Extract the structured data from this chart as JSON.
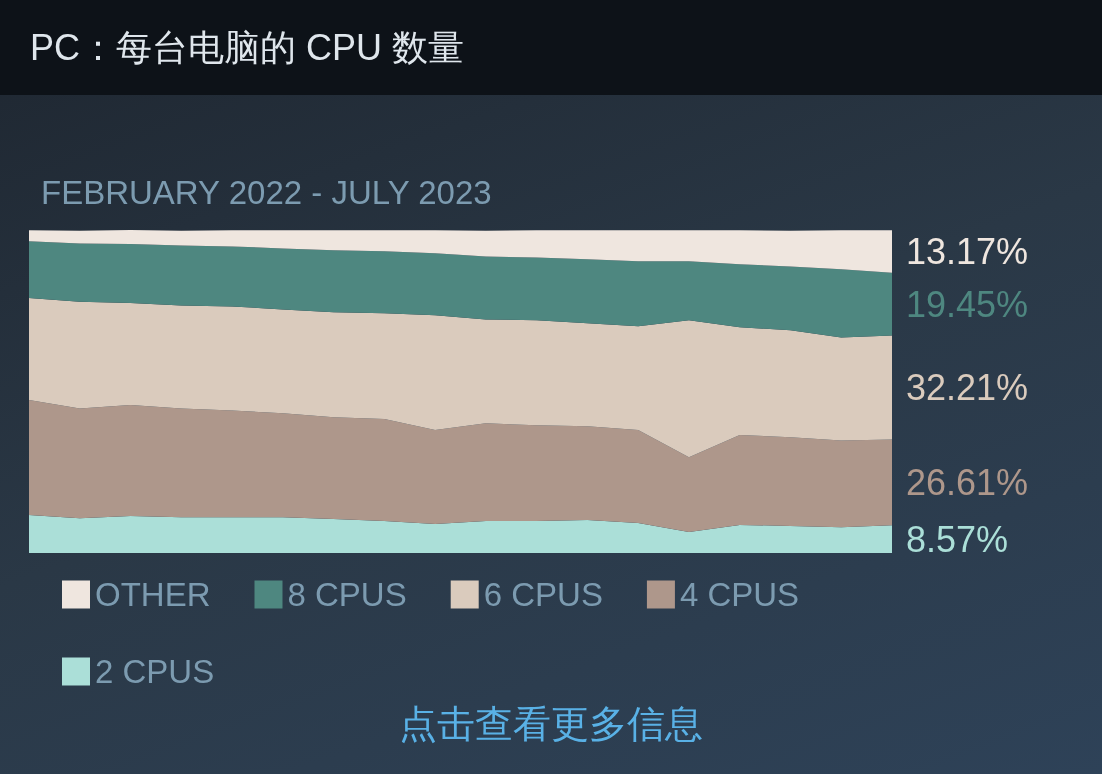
{
  "chart_data": {
    "type": "area",
    "title": "PC：每台电脑的 CPU 数量",
    "subtitle": "FEBRUARY 2022 - JULY 2023",
    "categories": [
      null,
      null,
      null,
      null,
      null,
      null,
      null,
      null,
      null,
      null,
      null,
      null,
      null,
      null,
      null,
      null,
      null,
      null
    ],
    "stacked": true,
    "tick_labels": false,
    "legend": "bottom",
    "series": [
      {
        "name": "2 CPUS",
        "color": "#abdfd8",
        "values": [
          11.8,
          10.8,
          11.5,
          11.1,
          11.1,
          11.1,
          10.5,
          9.9,
          9.0,
          9.9,
          9.9,
          10.2,
          9.3,
          6.5,
          8.7,
          8.4,
          8.0,
          8.57
        ],
        "value_labels": [
          null,
          null,
          null,
          null,
          null,
          null,
          null,
          null,
          null,
          null,
          null,
          null,
          null,
          null,
          null,
          null,
          null,
          "8.57%"
        ]
      },
      {
        "name": "4 CPUS",
        "color": "#ae978b",
        "values": [
          35.6,
          34.0,
          34.4,
          33.7,
          33.1,
          32.2,
          31.6,
          31.6,
          29.1,
          30.3,
          29.7,
          29.1,
          28.8,
          23.2,
          27.9,
          27.5,
          26.9,
          26.61
        ],
        "value_labels": [
          null,
          null,
          null,
          null,
          null,
          null,
          null,
          null,
          null,
          null,
          null,
          null,
          null,
          null,
          null,
          null,
          null,
          "26.61%"
        ]
      },
      {
        "name": "6 CPUS",
        "color": "#dacbbd",
        "values": [
          31.6,
          33.1,
          31.6,
          31.9,
          32.2,
          32.2,
          32.5,
          32.8,
          35.6,
          32.2,
          32.5,
          31.9,
          32.2,
          42.4,
          33.4,
          33.1,
          31.9,
          32.21
        ],
        "value_labels": [
          null,
          null,
          null,
          null,
          null,
          null,
          null,
          null,
          null,
          null,
          null,
          null,
          null,
          null,
          null,
          null,
          null,
          "32.21%"
        ]
      },
      {
        "name": "8 CPUS",
        "color": "#4e8780",
        "values": [
          17.6,
          18.0,
          18.3,
          18.6,
          18.6,
          18.9,
          19.2,
          19.2,
          19.2,
          19.5,
          19.5,
          19.8,
          20.1,
          18.3,
          19.5,
          19.8,
          21.1,
          19.45
        ],
        "value_labels": [
          null,
          null,
          null,
          null,
          null,
          null,
          null,
          null,
          null,
          null,
          null,
          null,
          null,
          null,
          null,
          null,
          null,
          "19.45%"
        ]
      },
      {
        "name": "OTHER",
        "color": "#efe6df",
        "values": [
          3.4,
          4.0,
          4.3,
          4.6,
          5.0,
          5.6,
          6.2,
          6.5,
          7.1,
          8.0,
          8.4,
          9.0,
          9.6,
          9.6,
          10.5,
          11.1,
          12.1,
          13.17
        ],
        "value_labels": [
          null,
          null,
          null,
          null,
          null,
          null,
          null,
          null,
          null,
          null,
          null,
          null,
          null,
          null,
          null,
          null,
          null,
          "13.17%"
        ]
      }
    ],
    "annotations": [
      "点击查看更多信息"
    ]
  }
}
